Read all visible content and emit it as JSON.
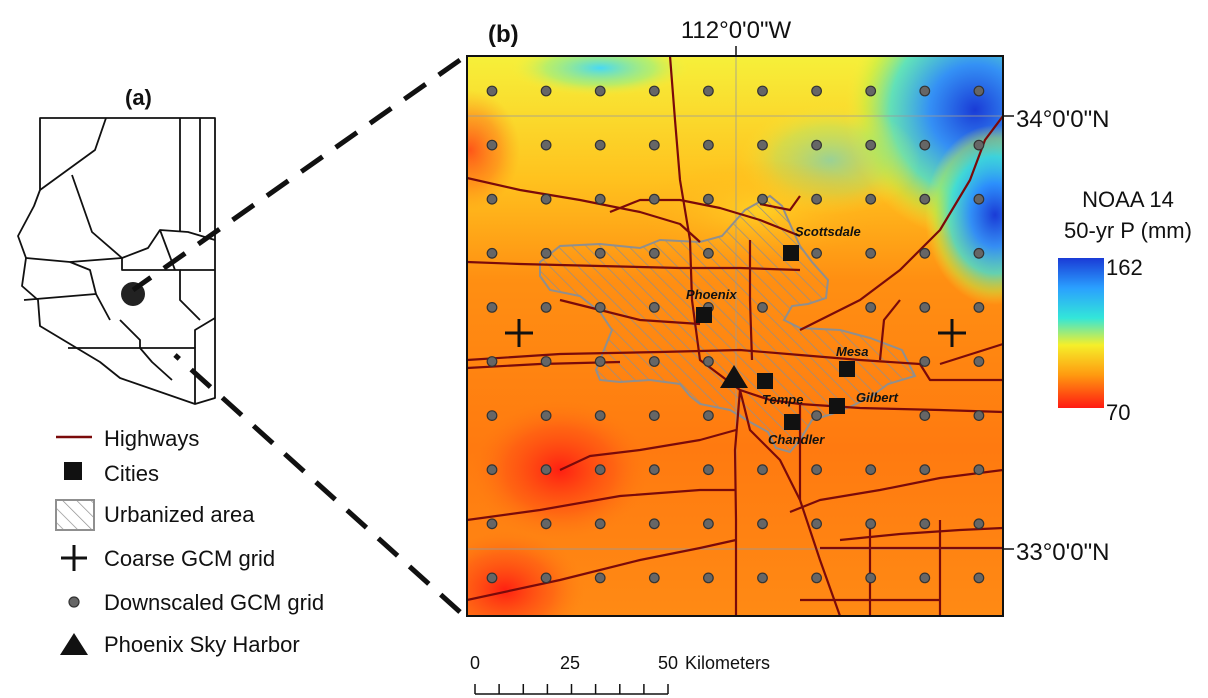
{
  "panel_a_label": "(a)",
  "panel_b_label": "(b)",
  "top_longitude": "112°0'0\"W",
  "lat_north": "34°0'0\"N",
  "lat_south": "33°0'0\"N",
  "colorbar": {
    "title_line1": "NOAA 14",
    "title_line2": "50-yr P (mm)",
    "max": "162",
    "min": "70",
    "colors": [
      "#1a3bd6",
      "#2aa0ff",
      "#33e6d9",
      "#f5ef2a",
      "#ff9a10",
      "#ff1a12"
    ]
  },
  "legend": {
    "highways": "Highways",
    "cities": "Cities",
    "urbanized": "Urbanized area",
    "coarse_grid": "Coarse GCM grid",
    "downscaled_grid": "Downscaled GCM grid",
    "airport": "Phoenix Sky Harbor"
  },
  "cities": {
    "scottsdale": "Scottsdale",
    "phoenix": "Phoenix",
    "mesa": "Mesa",
    "tempe": "Tempe",
    "gilbert": "Gilbert",
    "chandler": "Chandler"
  },
  "scalebar": {
    "tick0": "0",
    "tick25": "25",
    "tick50": "50",
    "unit": "Kilometers"
  },
  "colors": {
    "highway": "#7a0a0a",
    "urban_outline": "#8f8f8f",
    "grid_dot": "#666666"
  }
}
